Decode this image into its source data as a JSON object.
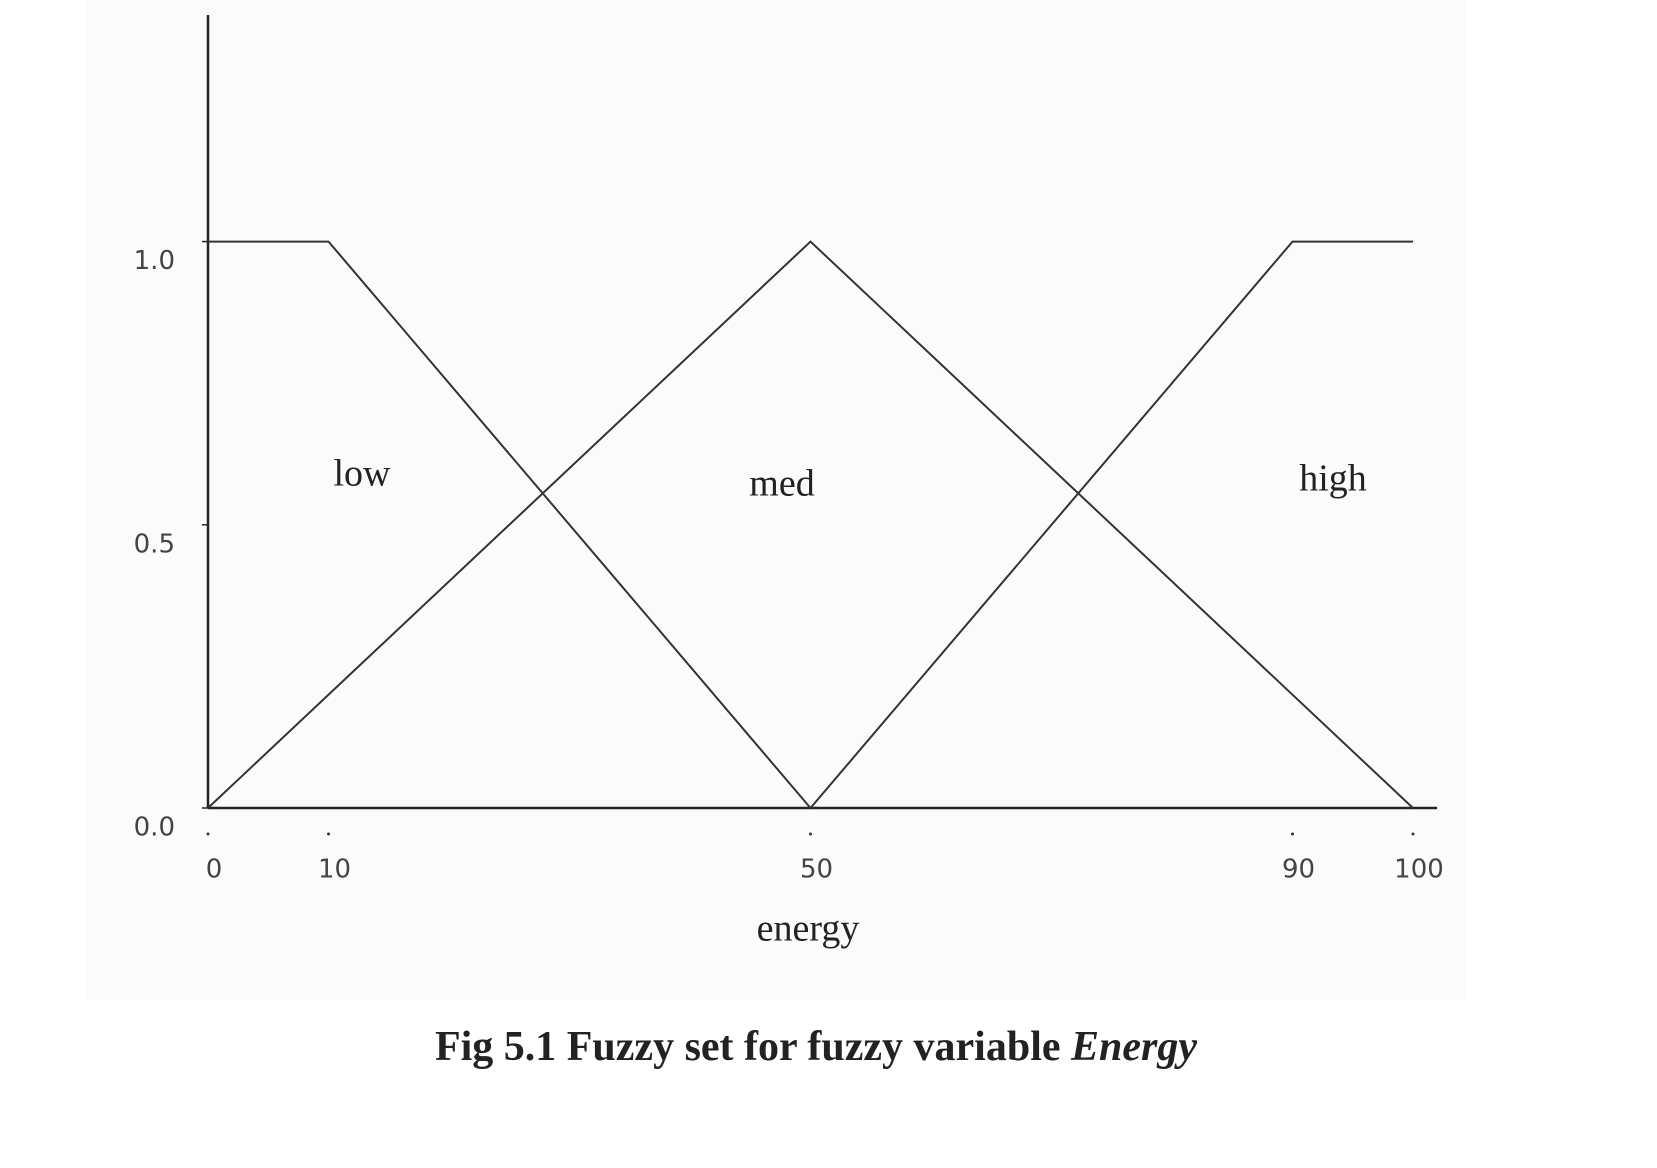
{
  "chart_data": {
    "type": "line",
    "title": "Fig 5.1 Fuzzy set for fuzzy variable",
    "title_emphasis": "Energy",
    "xlabel": "energy",
    "series": [
      {
        "name": "low",
        "color": "#333333",
        "x": [
          0,
          10,
          50
        ],
        "values": [
          1,
          1,
          0
        ]
      },
      {
        "name": "med",
        "color": "#333333",
        "x": [
          0,
          50,
          100
        ],
        "values": [
          0,
          1,
          0
        ]
      },
      {
        "name": "high",
        "color": "#333333",
        "x": [
          50,
          90,
          100
        ],
        "values": [
          0,
          1,
          1
        ]
      }
    ],
    "xlim": [
      0,
      102
    ],
    "xticks": [
      0,
      10,
      50,
      90,
      100
    ],
    "ylim": [
      0,
      1.4
    ],
    "yticks": [
      {
        "value": 1,
        "label": "1.0"
      },
      {
        "value": 0.5,
        "label": "0.5"
      },
      {
        "value": 0,
        "label": "0.0"
      }
    ]
  }
}
